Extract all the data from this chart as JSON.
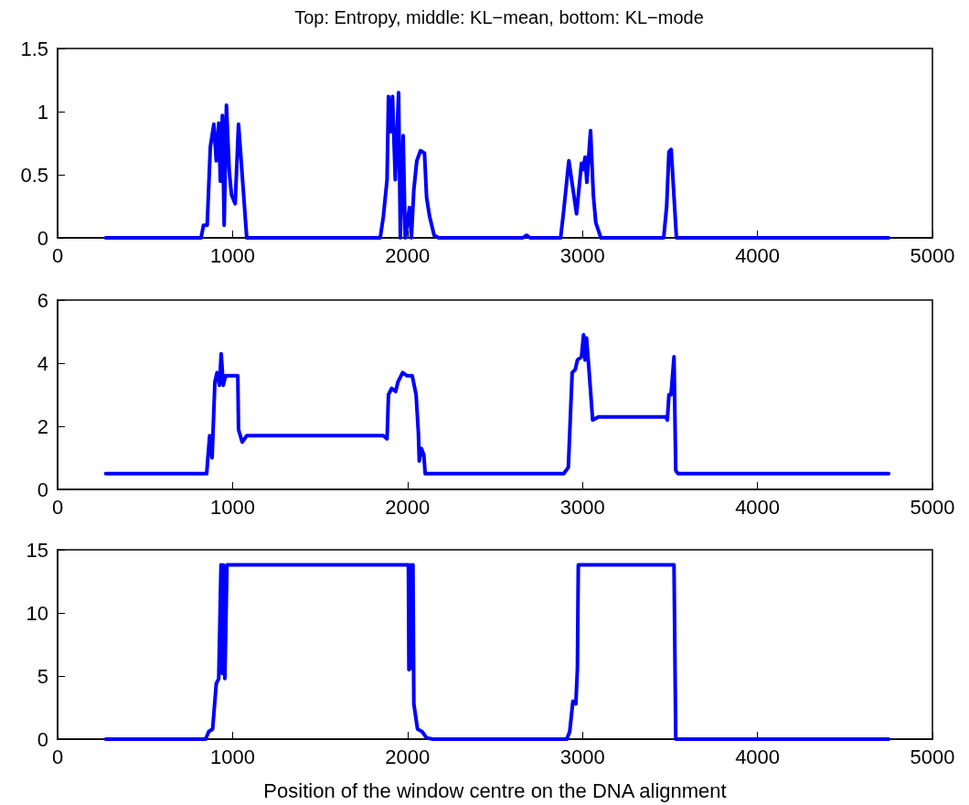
{
  "chart_data": [
    {
      "type": "line",
      "title": "Top: Entropy, middle: KL−mean, bottom: KL−mode",
      "line_style": "solid",
      "color": "#0000ff",
      "xlim": [
        0,
        5000
      ],
      "xticks": [
        0,
        1000,
        2000,
        3000,
        4000,
        5000
      ],
      "ylim": [
        0,
        1.5
      ],
      "yticks": [
        0,
        0.5,
        1,
        1.5
      ],
      "x": [
        275,
        820,
        834,
        855,
        873,
        893,
        907,
        921,
        930,
        942,
        952,
        965,
        981,
        994,
        1015,
        1034,
        1055,
        1081,
        1844,
        1862,
        1883,
        1891,
        1903,
        1914,
        1921,
        1930,
        1949,
        1959,
        1975,
        1987,
        2011,
        2022,
        2036,
        2053,
        2074,
        2097,
        2109,
        2126,
        2152,
        2178,
        2660,
        2680,
        2700,
        2875,
        2893,
        2922,
        2966,
        2994,
        3003,
        3015,
        3025,
        3046,
        3062,
        3076,
        3105,
        3464,
        3481,
        3494,
        3507,
        3537,
        4750
      ],
      "values": [
        0,
        0,
        0.1,
        0.1,
        0.72,
        0.9,
        0.61,
        0.91,
        0.45,
        0.97,
        0.1,
        1.05,
        0.53,
        0.34,
        0.27,
        0.9,
        0.5,
        0,
        0,
        0.17,
        0.46,
        1.12,
        0.84,
        1.12,
        0.84,
        0.46,
        1.15,
        0,
        0.81,
        0,
        0.24,
        0,
        0.38,
        0.61,
        0.69,
        0.67,
        0.32,
        0.17,
        0.02,
        0,
        0,
        0.02,
        0,
        0,
        0.22,
        0.61,
        0.19,
        0.59,
        0.54,
        0.64,
        0.44,
        0.85,
        0.34,
        0.12,
        0,
        0,
        0.25,
        0.68,
        0.7,
        0,
        0
      ]
    },
    {
      "type": "line",
      "line_style": "solid",
      "color": "#0000ff",
      "xlim": [
        0,
        5000
      ],
      "xticks": [
        0,
        1000,
        2000,
        3000,
        4000,
        5000
      ],
      "ylim": [
        0,
        6
      ],
      "yticks": [
        0,
        2,
        4,
        6
      ],
      "x": [
        275,
        852,
        869,
        883,
        899,
        911,
        925,
        935,
        947,
        960,
        1030,
        1034,
        1055,
        1081,
        1862,
        1883,
        1891,
        1909,
        1932,
        1945,
        1972,
        1998,
        2027,
        2049,
        2062,
        2067,
        2079,
        2093,
        2101,
        2126,
        2152,
        2893,
        2919,
        2941,
        2959,
        2971,
        2994,
        3006,
        3015,
        3023,
        3037,
        3058,
        3093,
        3476,
        3485,
        3494,
        3506,
        3523,
        3533,
        3546,
        4750
      ],
      "values": [
        0.5,
        0.5,
        1.7,
        1.0,
        3.4,
        3.7,
        3.3,
        4.3,
        3.3,
        3.6,
        3.6,
        1.9,
        1.5,
        1.7,
        1.7,
        1.6,
        3.0,
        3.2,
        3.1,
        3.4,
        3.7,
        3.6,
        3.6,
        3.0,
        1.8,
        0.9,
        1.3,
        1.1,
        0.5,
        0.5,
        0.5,
        0.5,
        0.7,
        3.7,
        3.8,
        4.1,
        4.2,
        4.9,
        4.1,
        4.8,
        3.8,
        2.2,
        2.3,
        2.3,
        2.2,
        3.0,
        3.0,
        4.2,
        0.6,
        0.5,
        0.5
      ]
    },
    {
      "type": "line",
      "xlabel": "Position of the window centre on the DNA alignment",
      "line_style": "solid",
      "color": "#0000ff",
      "xlim": [
        0,
        5000
      ],
      "xticks": [
        0,
        1000,
        2000,
        3000,
        4000,
        5000
      ],
      "ylim": [
        0,
        15
      ],
      "yticks": [
        0,
        5,
        10,
        15
      ],
      "x": [
        275,
        846,
        864,
        886,
        907,
        921,
        934,
        942,
        947,
        956,
        968,
        2005,
        2008,
        2018,
        2026,
        2031,
        2036,
        2057,
        2083,
        2109,
        2144,
        2910,
        2927,
        2945,
        2962,
        2971,
        2976,
        3523,
        3533,
        4750
      ],
      "values": [
        0,
        0,
        0.6,
        0.8,
        4.4,
        4.8,
        13.8,
        5.2,
        13.8,
        4.8,
        13.8,
        13.8,
        5.5,
        13.8,
        5.6,
        13.8,
        2.8,
        0.8,
        0.6,
        0.1,
        0,
        0,
        0.6,
        3.0,
        2.8,
        5.6,
        13.8,
        13.8,
        0,
        0
      ]
    }
  ]
}
